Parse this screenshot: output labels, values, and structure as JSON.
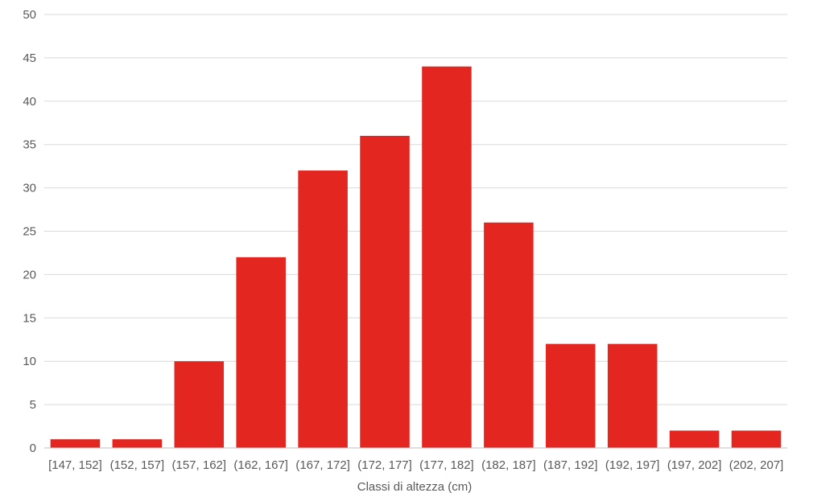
{
  "chart_data": {
    "type": "bar",
    "title": "",
    "xlabel": "Classi  di altezza (cm)",
    "ylabel": "",
    "categories": [
      "[147, 152]",
      "(152, 157]",
      "(157, 162]",
      "(162, 167]",
      "(167, 172]",
      "(172, 177]",
      "(177, 182]",
      "(182, 187]",
      "(187, 192]",
      "(192, 197]",
      "(197, 202]",
      "(202, 207]"
    ],
    "values": [
      1,
      1,
      10,
      22,
      32,
      36,
      44,
      26,
      12,
      12,
      2,
      2
    ],
    "ylim": [
      0,
      50
    ],
    "yticks": [
      0,
      5,
      10,
      15,
      20,
      25,
      30,
      35,
      40,
      45,
      50
    ],
    "grid": true,
    "bar_color": "#e32620",
    "grid_color": "#d9d9d9",
    "text_color": "#595959"
  }
}
